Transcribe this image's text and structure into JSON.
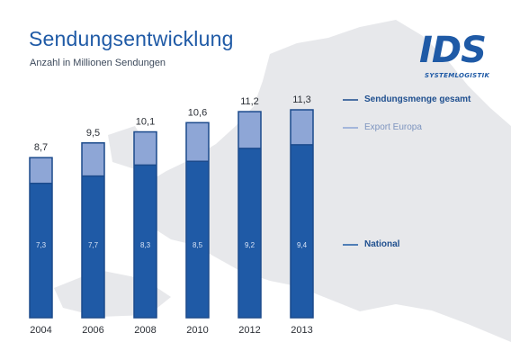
{
  "title": "Sendungsentwicklung",
  "subtitle": "Anzahl in Millionen Sendungen",
  "logo": {
    "text": "IDS",
    "subtext": "SYSTEMLOGISTIK"
  },
  "legend": {
    "total": "Sendungsmenge gesamt",
    "export": "Export Europa",
    "national": "National"
  },
  "colors": {
    "national": "#1f5aa6",
    "export": "#8ea6d6",
    "outline": "#1b4a8c",
    "title": "#1f5aa6",
    "map": "#e6e7ea"
  },
  "chart_data": {
    "type": "bar",
    "stacked": true,
    "title": "Sendungsentwicklung",
    "subtitle": "Anzahl in Millionen Sendungen",
    "categories": [
      "2004",
      "2006",
      "2008",
      "2010",
      "2012",
      "2013"
    ],
    "series": [
      {
        "name": "National",
        "values": [
          7.3,
          7.7,
          8.3,
          8.5,
          9.2,
          9.4
        ],
        "labels": [
          "7,3",
          "7,7",
          "8,3",
          "8,5",
          "9,2",
          "9,4"
        ]
      },
      {
        "name": "Export Europa",
        "values": [
          1.4,
          1.8,
          1.8,
          2.1,
          2.0,
          1.9
        ]
      }
    ],
    "totals": [
      8.7,
      9.5,
      10.1,
      10.6,
      11.2,
      11.3
    ],
    "total_labels": [
      "8,7",
      "9,5",
      "10,1",
      "10,6",
      "11,2",
      "11,3"
    ],
    "total_name": "Sendungsmenge gesamt",
    "ylim": [
      0,
      11.3
    ],
    "grid": false,
    "legend_position": "right"
  }
}
